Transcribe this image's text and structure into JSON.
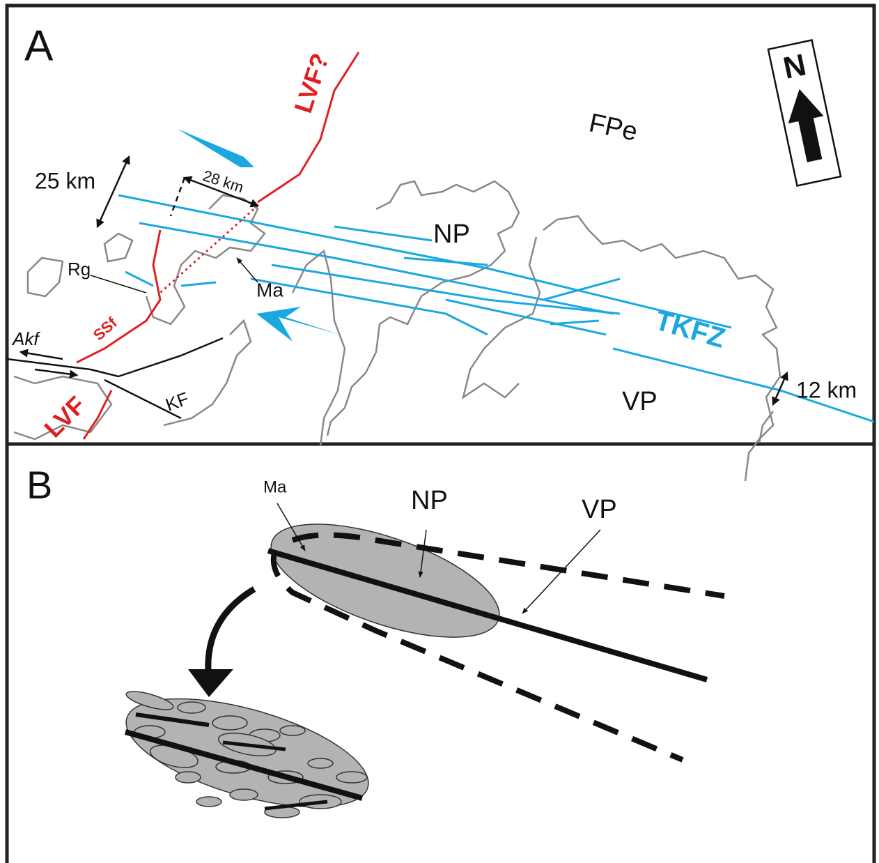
{
  "panel_a": {
    "label": "A",
    "north": "N",
    "labels": {
      "fpe": "FPe",
      "lvf_q": "LVF?",
      "km25": "25 km",
      "km28": "28 km",
      "np": "NP",
      "rg": "Rg",
      "ma": "Ma",
      "tkfz": "TKFZ",
      "ssf": "SSf",
      "akf": "Akf",
      "lvf": "LVF",
      "kf": "KF",
      "vp": "VP",
      "km12": "12 km"
    }
  },
  "panel_b": {
    "label": "B",
    "labels": {
      "ma": "Ma",
      "np": "NP",
      "vp": "VP"
    }
  }
}
